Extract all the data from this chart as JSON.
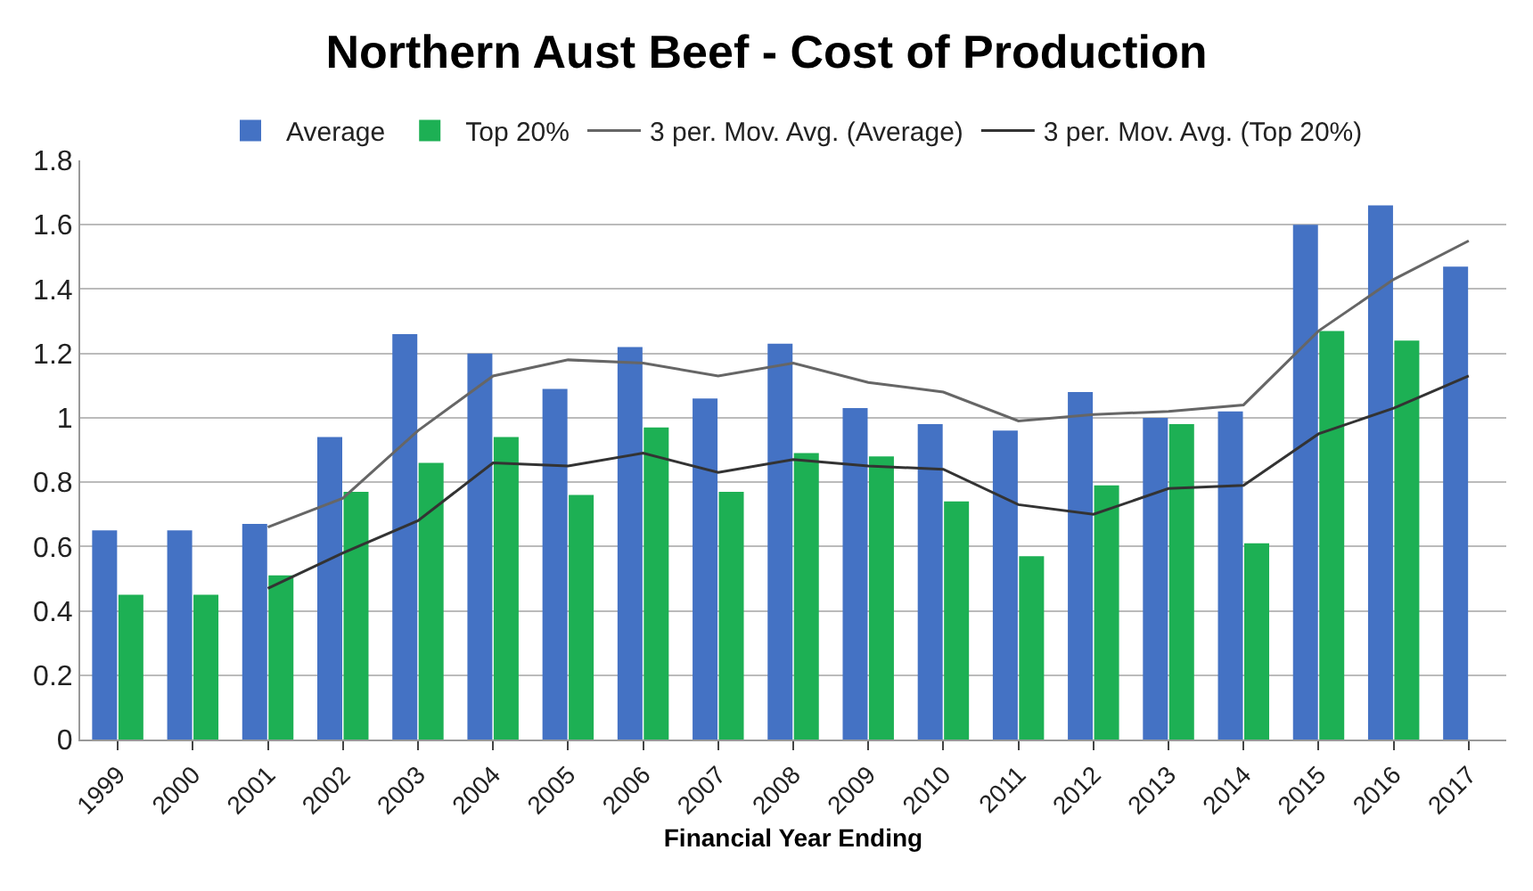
{
  "chart_data": {
    "type": "bar",
    "title": "Northern Aust Beef - Cost of Production",
    "xlabel": "Financial Year Ending",
    "categories": [
      "1999",
      "2000",
      "2001",
      "2002",
      "2003",
      "2004",
      "2005",
      "2006",
      "2007",
      "2008",
      "2009",
      "2010",
      "2011",
      "2012",
      "2013",
      "2014",
      "2015",
      "2016",
      "2017"
    ],
    "series": [
      {
        "name": "Average",
        "color": "#4472c4",
        "values": [
          0.65,
          0.65,
          0.67,
          0.94,
          1.26,
          1.2,
          1.09,
          1.22,
          1.06,
          1.23,
          1.03,
          0.98,
          0.96,
          1.08,
          1.0,
          1.02,
          1.6,
          1.66,
          1.47
        ]
      },
      {
        "name": "Top 20%",
        "color": "#1db054",
        "values": [
          0.45,
          0.45,
          0.51,
          0.77,
          0.86,
          0.94,
          0.76,
          0.97,
          0.77,
          0.89,
          0.88,
          0.74,
          0.57,
          0.79,
          0.98,
          0.61,
          1.27,
          1.24,
          null
        ]
      },
      {
        "name": "3 per. Mov. Avg. (Average)",
        "type": "line",
        "color": "#666666",
        "values": [
          null,
          null,
          0.66,
          0.75,
          0.96,
          1.13,
          1.18,
          1.17,
          1.13,
          1.17,
          1.11,
          1.08,
          0.99,
          1.01,
          1.02,
          1.04,
          1.27,
          1.43,
          1.55
        ]
      },
      {
        "name": "3 per. Mov. Avg. (Top 20%)",
        "type": "line",
        "color": "#333333",
        "values": [
          null,
          null,
          0.47,
          0.58,
          0.68,
          0.86,
          0.85,
          0.89,
          0.83,
          0.87,
          0.85,
          0.84,
          0.73,
          0.7,
          0.78,
          0.79,
          0.95,
          1.03,
          1.13
        ]
      }
    ],
    "ylim": [
      0,
      1.8
    ],
    "yticks": [
      0,
      0.2,
      0.4,
      0.6,
      0.8,
      1,
      1.2,
      1.4,
      1.6,
      1.8
    ],
    "grid": "y",
    "legend": "top"
  }
}
